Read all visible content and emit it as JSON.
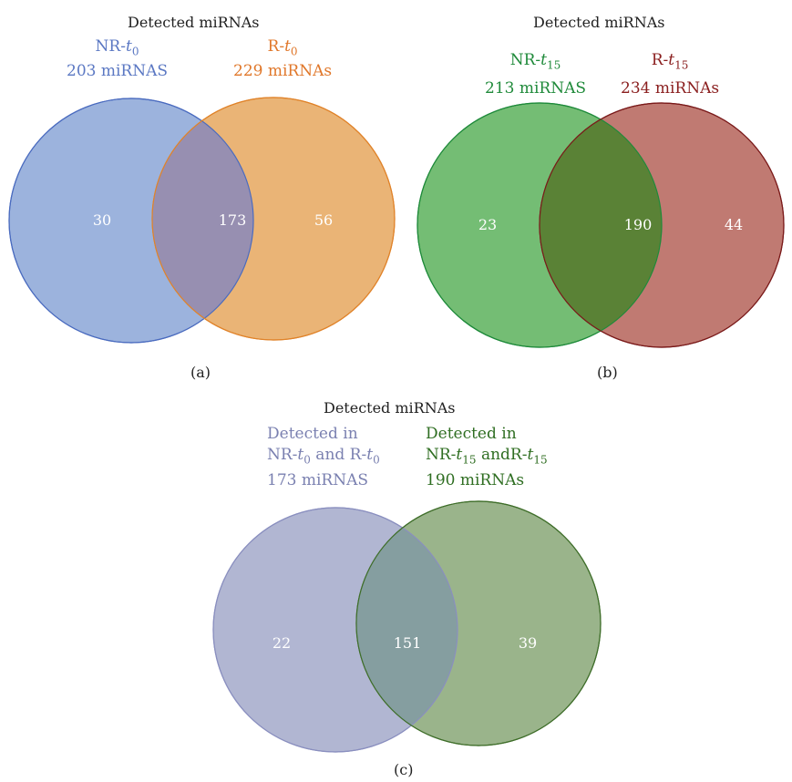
{
  "panels": {
    "a": {
      "title": "Detected miRNAs",
      "caption": "(a)",
      "left_set": {
        "prefix": "NR-",
        "var": "t",
        "sub": "0",
        "count_label": "203 miRNAS",
        "color": "#5b78c3",
        "fill": "#9cb3dd",
        "stroke": "#4a6bbf"
      },
      "right_set": {
        "prefix": "R-",
        "var": "t",
        "sub": "0",
        "count_label": "229 miRNAs",
        "color": "#e0772a",
        "fill": "#eab476",
        "stroke": "#e0832a"
      },
      "overlap_fill": "#978fb1",
      "only_left": "30",
      "both": "173",
      "only_right": "56"
    },
    "b": {
      "title": "Detected miRNAs",
      "caption": "(b)",
      "left_set": {
        "prefix": "NR-",
        "var": "t",
        "sub": "15",
        "count_label": "213 miRNAS",
        "color": "#1f8a3a",
        "fill": "#74bd74",
        "stroke": "#1e8a3a"
      },
      "right_set": {
        "prefix": "R-",
        "var": "t",
        "sub": "15",
        "count_label": "234 miRNAs",
        "color": "#8a1e1e",
        "fill": "#c07a72",
        "stroke": "#7a1a1a"
      },
      "overlap_fill": "#5a8236",
      "only_left": "23",
      "both": "190",
      "only_right": "44"
    },
    "c": {
      "title": "Detected miRNAs",
      "caption": "(c)",
      "left_set": {
        "line1": "Detected in",
        "l2_a": "NR-",
        "l2_var1": "t",
        "l2_sub1": "0",
        "l2_mid": " and R-",
        "l2_var2": "t",
        "l2_sub2": "0",
        "line3": "173 miRNAS",
        "color": "#7a80b0",
        "fill": "#b1b6d2",
        "stroke": "#8a8fbf"
      },
      "right_set": {
        "line1": "Detected in",
        "l2_a": "NR-",
        "l2_var1": "t",
        "l2_sub1": "15",
        "l2_mid": " andR-",
        "l2_var2": "t",
        "l2_sub2": "15",
        "line3": "190 miRNAs",
        "color": "#2f6e22",
        "fill": "#9ab48b",
        "stroke": "#3f6e2a"
      },
      "overlap_fill": "#859ea0",
      "only_left": "22",
      "both": "151",
      "only_right": "39"
    }
  }
}
